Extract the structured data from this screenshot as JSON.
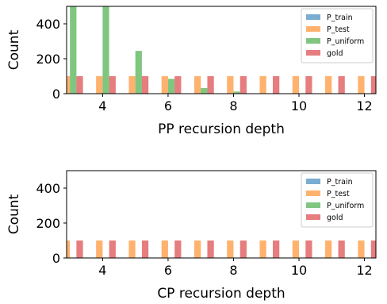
{
  "chart_data": [
    {
      "type": "bar",
      "xlabel": "PP recursion depth",
      "ylabel": "Count",
      "xlim": [
        2.9,
        12.35
      ],
      "ylim": [
        0,
        500
      ],
      "xticks": [
        4,
        6,
        8,
        10,
        12
      ],
      "yticks": [
        0,
        200,
        400
      ],
      "legend_position": "top-right",
      "series": [
        {
          "name": "P_train",
          "color": "#1f77b4",
          "x": [
            3,
            4,
            5,
            6,
            7,
            8,
            9,
            10,
            11,
            12
          ],
          "values": [
            32,
            0,
            0,
            0,
            0,
            0,
            0,
            0,
            0,
            0
          ]
        },
        {
          "name": "P_test",
          "color": "#ff7f0e",
          "x": [
            3,
            4,
            5,
            6,
            7,
            8,
            9,
            10,
            11,
            12
          ],
          "values": [
            100,
            100,
            100,
            100,
            100,
            100,
            100,
            100,
            100,
            100
          ]
        },
        {
          "name": "P_uniform",
          "color": "#2ca02c",
          "x": [
            3,
            4,
            5,
            6,
            7,
            8,
            9,
            10,
            11,
            12
          ],
          "values": [
            500,
            500,
            245,
            85,
            32,
            12,
            0,
            0,
            0,
            0
          ]
        },
        {
          "name": "gold",
          "color": "#d62728",
          "x": [
            3,
            4,
            5,
            6,
            7,
            8,
            9,
            10,
            11,
            12
          ],
          "values": [
            100,
            100,
            100,
            100,
            100,
            100,
            100,
            100,
            100,
            100
          ]
        }
      ]
    },
    {
      "type": "bar",
      "xlabel": "CP recursion depth",
      "ylabel": "Count",
      "xlim": [
        2.9,
        12.35
      ],
      "ylim": [
        0,
        500
      ],
      "xticks": [
        4,
        6,
        8,
        10,
        12
      ],
      "yticks": [
        0,
        200,
        400
      ],
      "legend_position": "top-right",
      "series": [
        {
          "name": "P_train",
          "color": "#1f77b4",
          "x": [
            3,
            4,
            5,
            6,
            7,
            8,
            9,
            10,
            11,
            12
          ],
          "values": [
            10,
            0,
            0,
            0,
            0,
            0,
            0,
            0,
            0,
            0
          ]
        },
        {
          "name": "P_test",
          "color": "#ff7f0e",
          "x": [
            3,
            4,
            5,
            6,
            7,
            8,
            9,
            10,
            11,
            12
          ],
          "values": [
            100,
            100,
            100,
            100,
            100,
            100,
            100,
            100,
            100,
            100
          ]
        },
        {
          "name": "P_uniform",
          "color": "#2ca02c",
          "x": [
            3,
            4,
            5,
            6,
            7,
            8,
            9,
            10,
            11,
            12
          ],
          "values": [
            0,
            0,
            0,
            0,
            0,
            0,
            0,
            0,
            0,
            0
          ]
        },
        {
          "name": "gold",
          "color": "#d62728",
          "x": [
            3,
            4,
            5,
            6,
            7,
            8,
            9,
            10,
            11,
            12
          ],
          "values": [
            100,
            100,
            100,
            100,
            100,
            100,
            100,
            100,
            100,
            100
          ]
        }
      ]
    }
  ]
}
